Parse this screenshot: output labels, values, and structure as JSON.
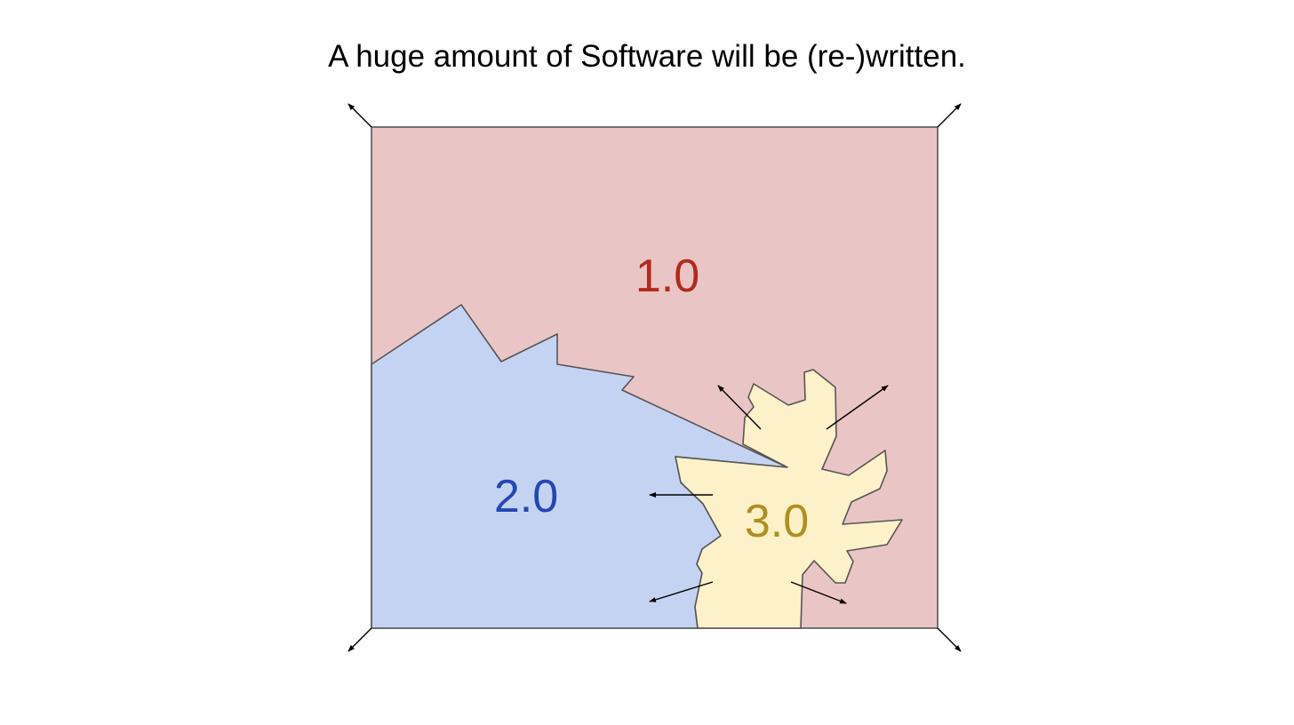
{
  "slide": {
    "title": "A huge amount of Software will be (re-)written."
  },
  "regions": [
    {
      "id": "software-1",
      "label": "1.0",
      "fill": "#eac5c5",
      "text_color": "#b3291d"
    },
    {
      "id": "software-2",
      "label": "2.0",
      "fill": "#c5d3f3",
      "text_color": "#2446b8"
    },
    {
      "id": "software-3",
      "label": "3.0",
      "fill": "#fdf1c9",
      "text_color": "#b08e1f"
    }
  ],
  "colors": {
    "outline": "#555555",
    "arrow": "#000000",
    "background": "#ffffff"
  }
}
